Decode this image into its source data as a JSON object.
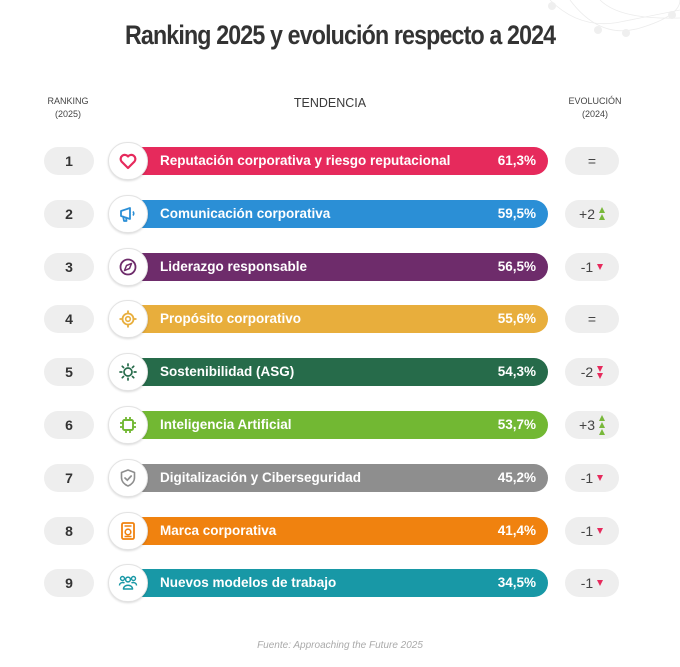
{
  "title": "Ranking 2025 y evolución respecto a 2024",
  "headers": {
    "ranking_line1": "RANKING",
    "ranking_line2": "(2025)",
    "trend": "TENDENCIA",
    "evolution_line1": "EVOLUCIÓN",
    "evolution_line2": "(2024)"
  },
  "source": "Fuente: Approaching the Future 2025",
  "chart_data": {
    "type": "bar",
    "title": "Ranking 2025 y evolución respecto a 2024",
    "xlabel": "TENDENCIA",
    "ylabel": "RANKING (2025)",
    "unit": "%",
    "categories": [
      "Reputación corporativa y riesgo reputacional",
      "Comunicación corporativa",
      "Liderazgo responsable",
      "Propósito corporativo",
      "Sostenibilidad (ASG)",
      "Inteligencia Artificial",
      "Digitalización y Ciberseguridad",
      "Marca corporativa",
      "Nuevos modelos de trabajo"
    ],
    "values": [
      61.3,
      59.5,
      56.5,
      55.6,
      54.3,
      53.7,
      45.2,
      41.4,
      34.5
    ],
    "items": [
      {
        "rank": "1",
        "label": "Reputación corporativa y riesgo reputacional",
        "value_text": "61,3%",
        "value": 61.3,
        "evolution": "=",
        "change": 0,
        "color": "#e62a5c",
        "icon": "heart-icon"
      },
      {
        "rank": "2",
        "label": "Comunicación corporativa",
        "value_text": "59,5%",
        "value": 59.5,
        "evolution": "+2",
        "change": 2,
        "color": "#2b8fd6",
        "icon": "megaphone-icon"
      },
      {
        "rank": "3",
        "label": "Liderazgo responsable",
        "value_text": "56,5%",
        "value": 56.5,
        "evolution": "-1",
        "change": -1,
        "color": "#6e2c6b",
        "icon": "compass-icon"
      },
      {
        "rank": "4",
        "label": "Propósito corporativo",
        "value_text": "55,6%",
        "value": 55.6,
        "evolution": "=",
        "change": 0,
        "color": "#e8ae3c",
        "icon": "target-icon"
      },
      {
        "rank": "5",
        "label": "Sostenibilidad (ASG)",
        "value_text": "54,3%",
        "value": 54.3,
        "evolution": "-2",
        "change": -2,
        "color": "#266b4a",
        "icon": "sun-icon"
      },
      {
        "rank": "6",
        "label": "Inteligencia Artificial",
        "value_text": "53,7%",
        "value": 53.7,
        "evolution": "+3",
        "change": 3,
        "color": "#72b833",
        "icon": "chip-icon"
      },
      {
        "rank": "7",
        "label": "Digitalización y Ciberseguridad",
        "value_text": "45,2%",
        "value": 45.2,
        "evolution": "-1",
        "change": -1,
        "color": "#8e8e8e",
        "icon": "shield-check-icon"
      },
      {
        "rank": "8",
        "label": "Marca corporativa",
        "value_text": "41,4%",
        "value": 41.4,
        "evolution": "-1",
        "change": -1,
        "color": "#f0820f",
        "icon": "badge-icon"
      },
      {
        "rank": "9",
        "label": "Nuevos modelos de trabajo",
        "value_text": "34,5%",
        "value": 34.5,
        "evolution": "-1",
        "change": -1,
        "color": "#1898a6",
        "icon": "team-icon"
      }
    ]
  }
}
